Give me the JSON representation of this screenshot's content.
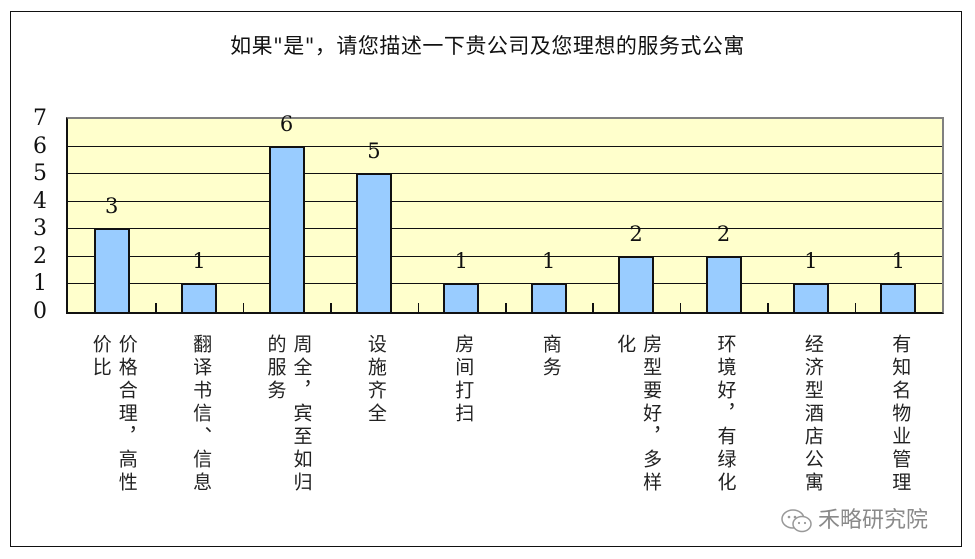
{
  "chart_data": {
    "type": "bar",
    "title": "如果\"是\"，请您描述一下贵公司及您理想的服务式公寓",
    "categories": [
      "价格合理，高性价比",
      "翻译书信、信息",
      "周全，宾至如归的服务",
      "设施齐全",
      "房间打扫",
      "商务",
      "房型要好，多样化",
      "环境好，有绿化",
      "经济型酒店公寓",
      "有知名物业管理"
    ],
    "category_display": [
      "价格合理，高性\n价比",
      "翻译书信、信息",
      "周全，宾至如归\n的服务",
      "设施齐全",
      "房间打扫",
      "商务",
      "房型要好，多样\n化",
      "环境好，有绿化",
      "经济型酒店公寓",
      "有知名物业管理"
    ],
    "values": [
      3,
      1,
      6,
      5,
      1,
      1,
      2,
      2,
      1,
      1
    ],
    "data_labels": [
      "3",
      "1",
      "6",
      "5",
      "1",
      "1",
      "2",
      "2",
      "1",
      "1"
    ],
    "xlabel": "",
    "ylabel": "",
    "ylim": [
      0,
      7
    ],
    "yticks": [
      "0",
      "1",
      "2",
      "3",
      "4",
      "5",
      "6",
      "7"
    ],
    "grid": true,
    "legend": null,
    "colors": {
      "bar_fill": "#99ccff",
      "bar_border": "#111111",
      "plot_bg": "#ffffcc"
    }
  },
  "watermark": {
    "text": "禾略研究院",
    "icon": "wechat-icon"
  }
}
